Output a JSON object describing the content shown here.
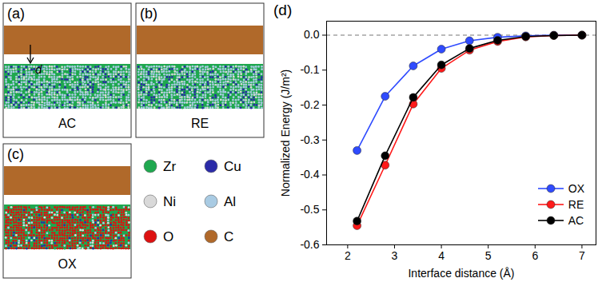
{
  "chart_data": {
    "type": "line",
    "title": "(d)",
    "x": [
      2.2,
      2.8,
      3.4,
      4.0,
      4.6,
      5.2,
      5.8,
      6.4,
      7.0
    ],
    "series": [
      {
        "name": "OX",
        "color": "#2f4bff",
        "values": [
          -0.33,
          -0.175,
          -0.088,
          -0.04,
          -0.016,
          -0.006,
          -0.002,
          0,
          0
        ]
      },
      {
        "name": "RE",
        "color": "#ff1a1a",
        "values": [
          -0.545,
          -0.372,
          -0.197,
          -0.095,
          -0.043,
          -0.018,
          -0.005,
          -0.001,
          0
        ]
      },
      {
        "name": "AC",
        "color": "#000000",
        "values": [
          -0.532,
          -0.345,
          -0.178,
          -0.085,
          -0.038,
          -0.015,
          -0.004,
          -0.001,
          0
        ]
      }
    ],
    "xlabel": "Interface distance (Å)",
    "ylabel": "Normalized Energy (J/m²)",
    "xlim": [
      1.55,
      7.3
    ],
    "ylim": [
      -0.6,
      0.04
    ],
    "xticks": [
      2,
      3,
      4,
      5,
      6,
      7
    ],
    "yticks": [
      -0.6,
      -0.5,
      -0.4,
      -0.3,
      -0.2,
      -0.1,
      {
        "value": 0,
        "label": "0.0"
      }
    ],
    "reference_line": 0,
    "legend": "lower right",
    "marker": "circle"
  },
  "panels": [
    {
      "letter": "(a)",
      "label": "AC",
      "annotation": "d"
    },
    {
      "letter": "(b)",
      "label": "RE"
    },
    {
      "letter": "(c)",
      "label": "OX"
    }
  ],
  "elements": [
    {
      "name": "Zr",
      "color": "#1fa84f"
    },
    {
      "name": "Cu",
      "color": "#2b2ba8"
    },
    {
      "name": "Ni",
      "color": "#d9d9d9"
    },
    {
      "name": "Al",
      "color": "#a9cbe3"
    },
    {
      "name": "O",
      "color": "#dd1111"
    },
    {
      "name": "C",
      "color": "#b0692a"
    }
  ]
}
